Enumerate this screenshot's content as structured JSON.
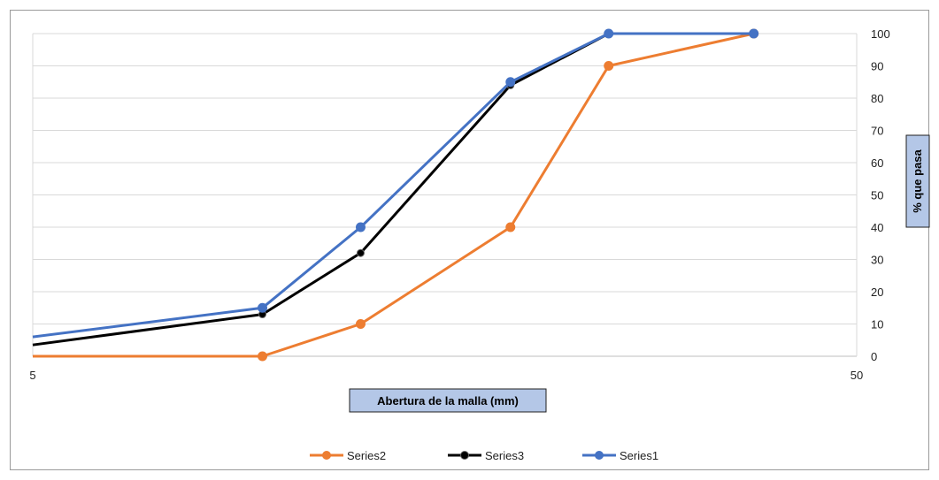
{
  "chart_data": {
    "type": "line",
    "xscale": "log",
    "xlim": [
      5,
      50
    ],
    "ylim": [
      0,
      100
    ],
    "x_ticks": [
      "5",
      "50"
    ],
    "y_ticks": [
      "0",
      "10",
      "20",
      "30",
      "40",
      "50",
      "60",
      "70",
      "80",
      "90",
      "100"
    ],
    "xlabel": "Abertura de la malla (mm)",
    "ylabel": "% que pasa",
    "y_axis_side": "right",
    "grid": "horizontal",
    "legend_position": "bottom",
    "series": [
      {
        "name": "Series2",
        "color": "#ED7D31",
        "points": [
          [
            5,
            0
          ],
          [
            9.5,
            0
          ],
          [
            12.5,
            10
          ],
          [
            19,
            40
          ],
          [
            25,
            90
          ],
          [
            37.5,
            100
          ]
        ]
      },
      {
        "name": "Series3",
        "color": "#000000",
        "points": [
          [
            5,
            3.5
          ],
          [
            9.5,
            13
          ],
          [
            12.5,
            32
          ],
          [
            19,
            84
          ],
          [
            25,
            100
          ],
          [
            37.5,
            100
          ]
        ]
      },
      {
        "name": "Series1",
        "color": "#4472C4",
        "points": [
          [
            5,
            6
          ],
          [
            9.5,
            15
          ],
          [
            12.5,
            40
          ],
          [
            19,
            85
          ],
          [
            25,
            100
          ],
          [
            37.5,
            100
          ]
        ]
      }
    ]
  }
}
